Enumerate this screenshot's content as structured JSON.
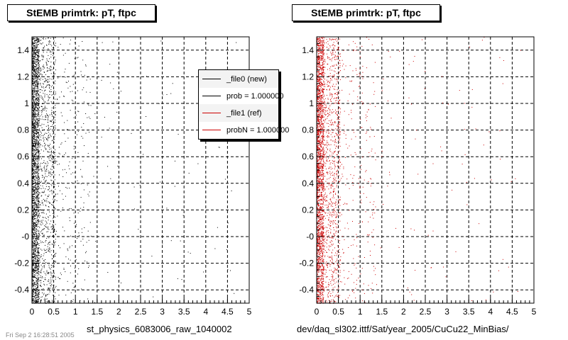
{
  "panels": [
    {
      "title": "StEMB primtrk: pT, ftpc",
      "xlabel": "st_physics_6083006_raw_1040002",
      "marker_color": "#000000"
    },
    {
      "title": "StEMB primtrk: pT, ftpc",
      "xlabel": "dev/daq_sl302.ittf/Sat/year_2005/CuCu22_MinBias/",
      "marker_color": "#cc0000"
    }
  ],
  "legend": {
    "entries": [
      {
        "label": "_file0 (new)",
        "color": "#000000"
      },
      {
        "label": "prob = 1.000000",
        "color": "#000000"
      },
      {
        "label": "_file1 (ref)",
        "color": "#cc0000"
      },
      {
        "label": "probN = 1.000000",
        "color": "#cc0000"
      }
    ]
  },
  "footer": "Fri Sep 2 16:28:51 2005",
  "chart_data": [
    {
      "type": "scatter",
      "title": "StEMB primtrk: pT, ftpc",
      "xlabel": "st_physics_6083006_raw_1040002",
      "ylabel": "",
      "xlim": [
        0,
        5
      ],
      "ylim": [
        -0.5,
        1.5
      ],
      "xticks": [
        "0",
        "0.5",
        "1",
        "1.5",
        "2",
        "2.5",
        "3",
        "3.5",
        "4",
        "4.5",
        "5"
      ],
      "yticks": [
        "-0.4",
        "-0.2",
        "-0",
        "0.2",
        "0.4",
        "0.6",
        "0.8",
        "1",
        "1.2",
        "1.4"
      ],
      "grid": true,
      "legend_position": "top-right",
      "series": [
        {
          "name": "_file0 (new)",
          "color": "#000000",
          "distribution": "dense near x=0, falling off to sparse points beyond x=0.6"
        }
      ]
    },
    {
      "type": "scatter",
      "title": "StEMB primtrk: pT, ftpc",
      "xlabel": "dev/daq_sl302.ittf/Sat/year_2005/CuCu22_MinBias/",
      "ylabel": "",
      "xlim": [
        0,
        5
      ],
      "ylim": [
        -0.5,
        1.5
      ],
      "xticks": [
        "0",
        "0.5",
        "1",
        "1.5",
        "2",
        "2.5",
        "3",
        "3.5",
        "4",
        "4.5",
        "5"
      ],
      "yticks": [
        "-0.4",
        "-0.2",
        "-0",
        "0.2",
        "0.4",
        "0.6",
        "0.8",
        "1",
        "1.2",
        "1.4"
      ],
      "grid": true,
      "series": [
        {
          "name": "_file1 (ref)",
          "color": "#cc0000",
          "distribution": "dense near x=0, falling off to sparse points beyond x=0.6"
        }
      ]
    }
  ]
}
